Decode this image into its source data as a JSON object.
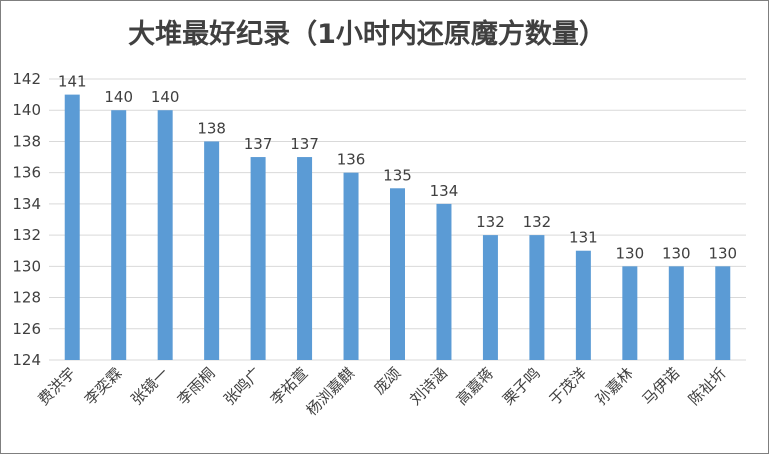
{
  "chart_data": {
    "type": "bar",
    "title": "大堆最好纪录（1小时内还原魔方数量）",
    "xlabel": "",
    "ylabel": "",
    "ylim": [
      124,
      142
    ],
    "ytick_step": 2,
    "grid": true,
    "legend": "none",
    "bar_color": "#5b9bd5",
    "categories": [
      "费洪宇",
      "李奕霖",
      "张镜一",
      "李雨桐",
      "张鸣广",
      "李祐萱",
      "杨浏嘉麒",
      "庞颂",
      "刘诗涵",
      "高嘉蒋",
      "栗子鸣",
      "于茂洋",
      "孙嘉林",
      "马伊诺",
      "陈祉圻"
    ],
    "values": [
      141,
      140,
      140,
      138,
      137,
      137,
      136,
      135,
      134,
      132,
      132,
      131,
      130,
      130,
      130
    ]
  }
}
